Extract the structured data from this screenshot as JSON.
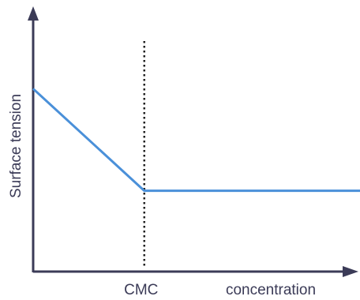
{
  "chart_data": {
    "type": "line",
    "title": "",
    "xlabel": "concentration",
    "ylabel": "Surface tension",
    "x_ticks": [
      {
        "x": 0.34,
        "label": "CMC"
      }
    ],
    "xlim": [
      0,
      1
    ],
    "ylim": [
      0,
      1
    ],
    "grid": false,
    "legend": "none",
    "series": [
      {
        "x": [
          0,
          0.34,
          1
        ],
        "y": [
          0.72,
          0.32,
          0.32
        ]
      }
    ],
    "reference_lines": [
      {
        "orientation": "vertical",
        "x": 0.34,
        "style": "dotted"
      }
    ],
    "colors": {
      "axis": "#3b3b57",
      "line": "#4a90d9",
      "reference": "#222222"
    }
  }
}
